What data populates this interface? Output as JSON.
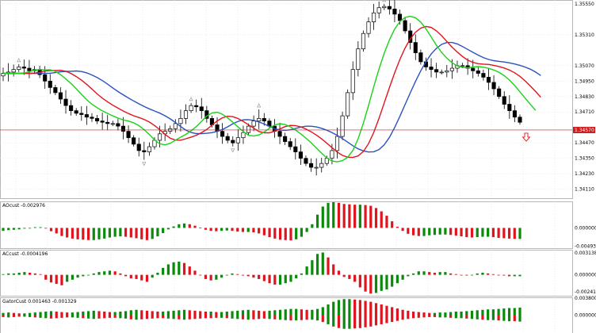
{
  "colors": {
    "bull": "#000000",
    "bear": "#000000",
    "jaw": "#2a52be",
    "teeth": "#e0141e",
    "lips": "#19d219",
    "hist_up": "#0a8a0a",
    "hist_down": "#e0141e",
    "price_line": "#c81e1e",
    "grid": "#dcdcdc",
    "fractal": "#9a9a9a"
  },
  "chart_data": [
    {
      "type": "candlestick",
      "y_ticks": [
        "1.35550",
        "1.35310",
        "1.35070",
        "1.34950",
        "1.34830",
        "1.34710",
        "1.34470",
        "1.34350",
        "1.34230",
        "1.34110"
      ],
      "tick_values": [
        1.3555,
        1.3531,
        1.3507,
        1.3495,
        1.3483,
        1.3471,
        1.3447,
        1.3435,
        1.3423,
        1.3411
      ],
      "current_price_label": "1.34570",
      "current_price": 1.3457,
      "arrow": "down-arrow-signal",
      "close": [
        1.3501,
        1.3502,
        1.3504,
        1.3506,
        1.3505,
        1.3503,
        1.3504,
        1.35,
        1.3495,
        1.349,
        1.3486,
        1.3481,
        1.3476,
        1.3472,
        1.347,
        1.3469,
        1.3467,
        1.3466,
        1.3464,
        1.3463,
        1.3462,
        1.3462,
        1.346,
        1.3456,
        1.3451,
        1.3446,
        1.3441,
        1.344,
        1.3444,
        1.3449,
        1.3454,
        1.3456,
        1.3458,
        1.3462,
        1.3466,
        1.3472,
        1.3476,
        1.3475,
        1.3472,
        1.3466,
        1.3461,
        1.3456,
        1.3452,
        1.3449,
        1.3447,
        1.3451,
        1.3455,
        1.346,
        1.3464,
        1.3466,
        1.3464,
        1.346,
        1.3456,
        1.3452,
        1.3448,
        1.3444,
        1.344,
        1.3435,
        1.3431,
        1.3428,
        1.3428,
        1.3431,
        1.3435,
        1.3441,
        1.3452,
        1.3468,
        1.3486,
        1.3504,
        1.352,
        1.3532,
        1.3541,
        1.3548,
        1.3552,
        1.3553,
        1.3551,
        1.3547,
        1.3542,
        1.3534,
        1.3525,
        1.3517,
        1.351,
        1.3506,
        1.3504,
        1.3502,
        1.3502,
        1.3503,
        1.3505,
        1.3507,
        1.3507,
        1.3505,
        1.3503,
        1.3501,
        1.3498,
        1.3494,
        1.3489,
        1.3483,
        1.3477,
        1.3472,
        1.3467,
        1.3463
      ]
    },
    {
      "type": "histogram",
      "title": "AOcust -0.002976",
      "y_ticks": [
        "0.000000",
        "-0.004931"
      ],
      "tick_values": [
        0,
        -0.004931
      ],
      "range": [
        -0.0055,
        0.0072
      ],
      "values": [
        -0.0008,
        -0.0006,
        -0.0005,
        -0.0004,
        -0.0002,
        0.0,
        0.0002,
        0.0002,
        0.0,
        -0.0009,
        -0.0015,
        -0.0022,
        -0.0026,
        -0.0029,
        -0.0031,
        -0.0032,
        -0.0033,
        -0.0033,
        -0.0031,
        -0.0029,
        -0.0026,
        -0.0024,
        -0.0023,
        -0.0024,
        -0.0026,
        -0.0028,
        -0.0031,
        -0.0033,
        -0.003,
        -0.0023,
        -0.0014,
        -0.0004,
        0.0004,
        0.001,
        0.0012,
        0.001,
        0.0006,
        0.0001,
        -0.0005,
        -0.0008,
        -0.0009,
        -0.0008,
        -0.0007,
        -0.0008,
        -0.001,
        -0.0011,
        -0.0011,
        -0.0012,
        -0.0015,
        -0.002,
        -0.0025,
        -0.0029,
        -0.0032,
        -0.0033,
        -0.0034,
        -0.0031,
        -0.0024,
        -0.0011,
        0.001,
        0.0036,
        0.0058,
        0.0068,
        0.007,
        0.0068,
        0.0065,
        0.0064,
        0.0063,
        0.0063,
        0.0062,
        0.006,
        0.0054,
        0.0045,
        0.0033,
        0.0018,
        0.0003,
        -0.0008,
        -0.0016,
        -0.002,
        -0.0022,
        -0.0022,
        -0.002,
        -0.0019,
        -0.0018,
        -0.0018,
        -0.0019,
        -0.0021,
        -0.0023,
        -0.0025,
        -0.0026,
        -0.0025,
        -0.0024,
        -0.0024,
        -0.0025,
        -0.0027,
        -0.0028,
        -0.0029,
        -0.003,
        -0.003
      ]
    },
    {
      "type": "histogram",
      "title": "ACcust -0.0004196",
      "y_ticks": [
        "0.0031382",
        "0.000000",
        "-0.0024114"
      ],
      "tick_values": [
        0.0031382,
        0,
        -0.0024114
      ],
      "range": [
        -0.003,
        0.0036
      ],
      "values": [
        0.0001,
        0.0002,
        0.0002,
        0.0003,
        0.0004,
        0.0003,
        0.0002,
        0.0001,
        -0.0007,
        -0.0011,
        -0.0013,
        -0.0015,
        -0.001,
        -0.0007,
        -0.0004,
        -0.0002,
        0.0,
        0.0002,
        0.0004,
        0.0005,
        0.0006,
        0.0005,
        0.0002,
        -0.0002,
        -0.0005,
        -0.0006,
        -0.0008,
        -0.001,
        -0.0004,
        0.0003,
        0.001,
        0.0015,
        0.0018,
        0.0019,
        0.0017,
        0.0012,
        0.0006,
        0.0,
        -0.0006,
        -0.0008,
        -0.0007,
        -0.0004,
        0.0,
        0.0002,
        0.0001,
        -0.0001,
        -0.0002,
        -0.0004,
        -0.0006,
        -0.0009,
        -0.0012,
        -0.0014,
        -0.0014,
        -0.0012,
        -0.001,
        -0.0005,
        0.0002,
        0.0012,
        0.0021,
        0.003,
        0.0032,
        0.0025,
        0.0015,
        0.0006,
        -0.0003,
        -0.0006,
        -0.001,
        -0.0018,
        -0.0024,
        -0.0027,
        -0.0026,
        -0.0023,
        -0.0021,
        -0.0017,
        -0.0012,
        -0.0007,
        -0.0002,
        0.0002,
        0.0005,
        0.0005,
        0.0004,
        0.0003,
        0.0004,
        0.0004,
        0.0002,
        0.0001,
        0.0,
        -0.0001,
        0.0,
        0.0002,
        0.0003,
        0.0002,
        0.0001,
        0.0,
        -0.0001,
        -0.0002,
        -0.0002,
        -0.0002
      ]
    },
    {
      "type": "histogram",
      "title": "GatorCust 0.001463 -0.001329",
      "y_ticks": [
        "0.003800",
        "0.000000"
      ],
      "tick_values": [
        0.0038,
        0
      ],
      "range": [
        -0.004,
        0.004
      ],
      "values": [
        0.0005,
        0.0006,
        0.0005,
        0.0004,
        0.0004,
        0.0005,
        0.0006,
        0.0007,
        0.0008,
        0.0009,
        0.0008,
        0.0007,
        0.0006,
        0.0006,
        0.0007,
        0.0008,
        0.0009,
        0.001,
        0.0009,
        0.0008,
        0.0007,
        0.0007,
        0.0008,
        0.0009,
        0.0011,
        0.0012,
        0.0011,
        0.001,
        0.0009,
        0.0008,
        0.0008,
        0.0009,
        0.001,
        0.0011,
        0.0012,
        0.0011,
        0.001,
        0.0009,
        0.0008,
        0.0008,
        0.0007,
        0.0007,
        0.0008,
        0.0009,
        0.001,
        0.0011,
        0.0012,
        0.0011,
        0.001,
        0.0009,
        0.001,
        0.0011,
        0.0012,
        0.0013,
        0.0014,
        0.0014,
        0.0013,
        0.0012,
        0.0012,
        0.0014,
        0.0018,
        0.0024,
        0.003,
        0.0034,
        0.0036,
        0.0036,
        0.0035,
        0.0034,
        0.0032,
        0.003,
        0.0027,
        0.0024,
        0.0021,
        0.0018,
        0.0015,
        0.0012,
        0.001,
        0.0008,
        0.0007,
        0.0006,
        0.0005,
        0.0005,
        0.0006,
        0.0006,
        0.0007,
        0.0008,
        0.0008,
        0.0009,
        0.001,
        0.0011,
        0.0012,
        0.0013,
        0.0013,
        0.0014,
        0.0015,
        0.0016,
        0.0016,
        0.0017
      ]
    }
  ]
}
